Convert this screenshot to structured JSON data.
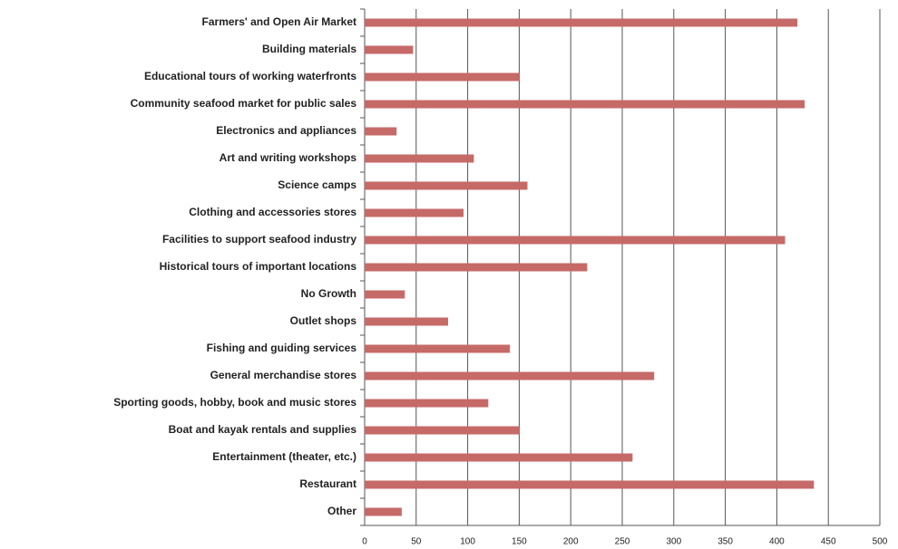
{
  "chart_data": {
    "type": "hbar",
    "categories": [
      "Farmers' and Open Air Market",
      "Building materials",
      "Educational tours of working waterfronts",
      "Community seafood market for public sales",
      "Electronics and appliances",
      "Art and writing workshops",
      "Science camps",
      "Clothing and accessories stores",
      "Facilities to support seafood industry",
      "Historical tours of important locations",
      "No Growth",
      "Outlet shops",
      "Fishing and guiding services",
      "General merchandise stores",
      "Sporting goods, hobby, book and music stores",
      "Boat and kayak rentals and supplies",
      "Entertainment (theater, etc.)",
      "Restaurant",
      "Other"
    ],
    "values": [
      420,
      47,
      150,
      427,
      31,
      106,
      158,
      96,
      408,
      216,
      39,
      81,
      141,
      281,
      120,
      150,
      260,
      436,
      36
    ],
    "color": "#c66a68",
    "xlim": [
      0,
      500
    ],
    "xticks": [
      0,
      50,
      100,
      150,
      200,
      250,
      300,
      350,
      400,
      450,
      500
    ],
    "grid": true
  }
}
